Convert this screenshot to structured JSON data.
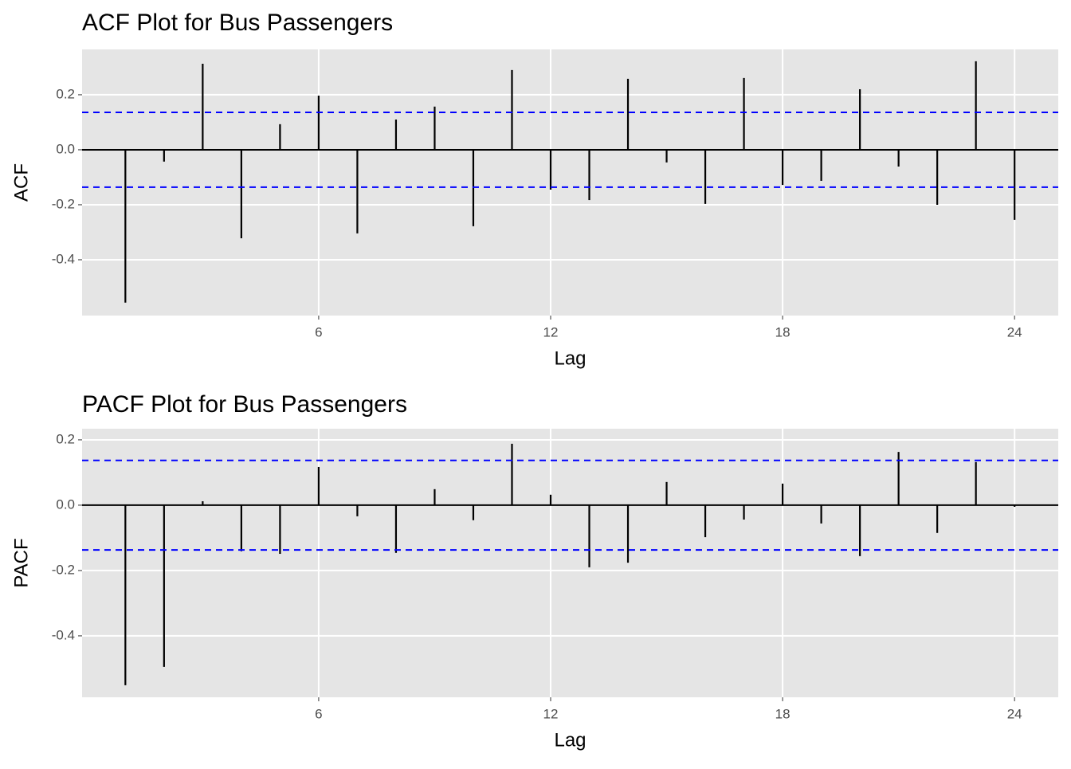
{
  "chart_data": [
    {
      "type": "bar",
      "title": "ACF Plot for Bus Passengers",
      "x_label": "Lag",
      "y_label": "ACF",
      "x": [
        1,
        2,
        3,
        4,
        5,
        6,
        7,
        8,
        9,
        10,
        11,
        12,
        13,
        14,
        15,
        16,
        17,
        18,
        19,
        20,
        21,
        22,
        23,
        24
      ],
      "values": [
        -0.556,
        -0.043,
        0.313,
        -0.322,
        0.093,
        0.197,
        -0.304,
        0.11,
        0.157,
        -0.278,
        0.29,
        -0.145,
        -0.183,
        0.258,
        -0.046,
        -0.197,
        0.261,
        -0.128,
        -0.113,
        0.22,
        -0.061,
        -0.2,
        0.322,
        -0.255
      ],
      "color": "#000000",
      "ci": [
        0.136,
        -0.136
      ],
      "ci_color": "#0000ff",
      "xlim": [
        -0.12,
        25.13
      ],
      "ylim": [
        -0.603,
        0.365
      ],
      "xticks": [
        6,
        12,
        18,
        24
      ],
      "yticks": [
        -0.4,
        -0.2,
        {
          "value": 0,
          "label": "0.0"
        },
        0.2
      ],
      "grid": true
    },
    {
      "type": "bar",
      "title": "PACF Plot for Bus Passengers",
      "x_label": "Lag",
      "y_label": "PACF",
      "x": [
        1,
        2,
        3,
        4,
        5,
        6,
        7,
        8,
        9,
        10,
        11,
        12,
        13,
        14,
        15,
        16,
        17,
        18,
        19,
        20,
        21,
        22,
        23,
        24
      ],
      "values": [
        -0.551,
        -0.495,
        0.012,
        -0.141,
        -0.149,
        0.117,
        -0.034,
        -0.146,
        0.049,
        -0.046,
        0.188,
        0.032,
        -0.19,
        -0.176,
        0.071,
        -0.098,
        -0.044,
        0.066,
        -0.056,
        -0.156,
        0.163,
        -0.085,
        0.132,
        -0.005
      ],
      "color": "#000000",
      "ci": [
        0.137,
        -0.137
      ],
      "ci_color": "#0000ff",
      "xlim": [
        -0.12,
        25.13
      ],
      "ylim": [
        -0.588,
        0.234
      ],
      "xticks": [
        6,
        12,
        18,
        24
      ],
      "yticks": [
        -0.4,
        -0.2,
        {
          "value": 0,
          "label": "0.0"
        },
        0.2
      ],
      "grid": true
    }
  ]
}
